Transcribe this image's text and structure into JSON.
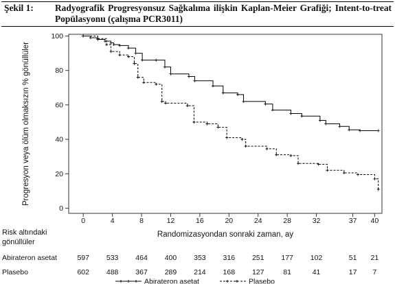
{
  "header": {
    "label": "Şekil 1:",
    "title": "Radyografik Progresyonsuz Sağkalıma ilişkin Kaplan-Meier Grafiği; Intent-to-treat Popülasyonu (çalışma PCR3011)"
  },
  "chart_data": {
    "type": "line",
    "title": "",
    "xlabel": "Randomizasyondan sonraki zaman, ay",
    "ylabel": "Progresyon veya ölüm olmaksızın % gönüllüler",
    "xlim": [
      -2,
      41
    ],
    "ylim": [
      -3,
      101
    ],
    "x_ticks": [
      0,
      4,
      8,
      12,
      16,
      20,
      24,
      28,
      32,
      37,
      40
    ],
    "x_tick_labels": [
      "0",
      "4",
      "8",
      "12",
      "16",
      "20",
      "24",
      "28",
      "32",
      "37",
      "40"
    ],
    "y_ticks": [
      0,
      20,
      40,
      60,
      80,
      100
    ],
    "y_tick_labels": [
      "0",
      "20",
      "40",
      "60",
      "80",
      "100"
    ],
    "grid": false,
    "legend_position": "bottom",
    "series": [
      {
        "name": "Abirateron asetat",
        "style": "solid",
        "color": "#000000",
        "x": [
          0,
          1,
          2,
          3,
          3.8,
          4.2,
          5,
          6.2,
          7.2,
          8.1,
          10,
          11.2,
          12,
          14.5,
          15.3,
          17.8,
          19.2,
          21.2,
          22,
          25,
          26,
          28.5,
          30,
          32.5,
          33.3,
          35.2,
          36.5,
          38,
          40.5
        ],
        "y": [
          100,
          99,
          98,
          97,
          96,
          95,
          94.5,
          93,
          90,
          86,
          86,
          82,
          78,
          76.5,
          74,
          71,
          67,
          66,
          62,
          60.5,
          57,
          55,
          53.5,
          51,
          49,
          47.5,
          45.5,
          45,
          45
        ]
      },
      {
        "name": "Plasebo",
        "style": "dashed",
        "color": "#000000",
        "x": [
          0,
          2,
          3.2,
          3.8,
          5,
          6.2,
          7,
          7.5,
          8.3,
          10,
          10.8,
          11.3,
          14.3,
          15.2,
          17,
          18.5,
          19.7,
          21.8,
          22.3,
          25.2,
          26.5,
          28.5,
          29.5,
          32.3,
          33.5,
          35.8,
          37.7,
          40,
          40.5
        ],
        "y": [
          100,
          98.5,
          95,
          91,
          89,
          88,
          84,
          76,
          73,
          72,
          62,
          61,
          59.5,
          50,
          49,
          47,
          41,
          40,
          36,
          34.5,
          31,
          30.5,
          26,
          25.5,
          22,
          20.5,
          19.5,
          17,
          11
        ]
      }
    ],
    "risk_table": {
      "header_line1": "Risk altındaki",
      "header_line2": "gönüllüler",
      "rows": [
        {
          "label": "Abirateron asetat",
          "values": [
            "597",
            "533",
            "464",
            "400",
            "353",
            "316",
            "251",
            "177",
            "102",
            "51",
            "21"
          ]
        },
        {
          "label": "Plasebo",
          "values": [
            "602",
            "488",
            "367",
            "289",
            "214",
            "168",
            "127",
            "81",
            "41",
            "17",
            "7"
          ]
        }
      ]
    }
  }
}
